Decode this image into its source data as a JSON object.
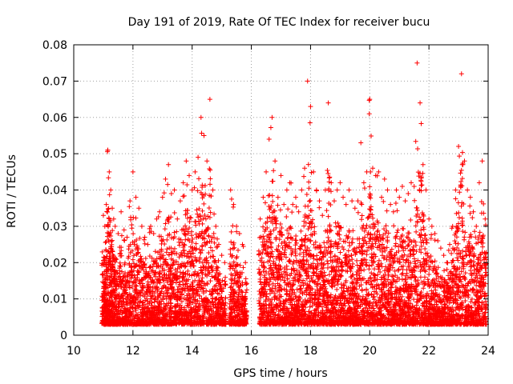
{
  "chart_data": {
    "type": "scatter",
    "title": "Day 191 of 2019, Rate Of TEC Index for receiver bucu",
    "xlabel": "GPS time / hours",
    "ylabel": "ROTI / TECUs",
    "xlim": [
      10,
      24
    ],
    "ylim": [
      0,
      0.08
    ],
    "xticks": [
      "10",
      "12",
      "14",
      "16",
      "18",
      "20",
      "22",
      "24"
    ],
    "yticks": [
      "0",
      "0.01",
      "0.02",
      "0.03",
      "0.04",
      "0.05",
      "0.06",
      "0.07",
      "0.08"
    ],
    "grid": true,
    "marker": "+",
    "color": "#ff0000",
    "series": [
      {
        "x": [
          11.0,
          11.05,
          11.1,
          11.15,
          11.2,
          11.25,
          11.3,
          11.35,
          11.4,
          11.5,
          11.6,
          11.7,
          11.8,
          11.9,
          12.0,
          12.1,
          12.2,
          12.3,
          12.4,
          12.5,
          12.6,
          12.7,
          12.8,
          12.9,
          13.0,
          13.1,
          13.2,
          13.3,
          13.4,
          13.5,
          13.6,
          13.7,
          13.8,
          13.9,
          14.0,
          14.1,
          14.2,
          14.3,
          14.4,
          14.5,
          14.6,
          14.7,
          14.8,
          14.9,
          15.0,
          15.1,
          15.3,
          15.4,
          15.5,
          15.6,
          15.7,
          15.8,
          16.3,
          16.4,
          16.5,
          16.6,
          16.7,
          16.8,
          16.9,
          17.0,
          17.1,
          17.2,
          17.3,
          17.4,
          17.5,
          17.6,
          17.7,
          17.8,
          17.9,
          18.0,
          18.1,
          18.2,
          18.3,
          18.4,
          18.5,
          18.6,
          18.7,
          18.8,
          18.9,
          19.0,
          19.1,
          19.2,
          19.3,
          19.4,
          19.5,
          19.6,
          19.7,
          19.8,
          19.9,
          20.0,
          20.1,
          20.2,
          20.3,
          20.4,
          20.5,
          20.6,
          20.7,
          20.8,
          20.9,
          21.0,
          21.1,
          21.2,
          21.3,
          21.4,
          21.5,
          21.6,
          21.7,
          21.8,
          21.9,
          22.0,
          22.1,
          22.2,
          22.3,
          22.4,
          22.5,
          22.6,
          22.7,
          22.8,
          22.9,
          23.0,
          23.1,
          23.2,
          23.3,
          23.4,
          23.5,
          23.6,
          23.7,
          23.8,
          23.9
        ],
        "y_max": [
          0.033,
          0.03,
          0.036,
          0.051,
          0.045,
          0.04,
          0.035,
          0.032,
          0.03,
          0.028,
          0.034,
          0.029,
          0.027,
          0.037,
          0.045,
          0.038,
          0.035,
          0.03,
          0.027,
          0.025,
          0.03,
          0.028,
          0.032,
          0.034,
          0.038,
          0.043,
          0.047,
          0.039,
          0.04,
          0.032,
          0.037,
          0.042,
          0.048,
          0.044,
          0.04,
          0.045,
          0.049,
          0.06,
          0.055,
          0.048,
          0.065,
          0.04,
          0.03,
          0.025,
          0.022,
          0.02,
          0.04,
          0.036,
          0.03,
          0.028,
          0.025,
          0.02,
          0.032,
          0.038,
          0.045,
          0.054,
          0.06,
          0.048,
          0.038,
          0.044,
          0.036,
          0.04,
          0.042,
          0.036,
          0.038,
          0.034,
          0.04,
          0.046,
          0.07,
          0.063,
          0.045,
          0.04,
          0.037,
          0.033,
          0.04,
          0.064,
          0.042,
          0.037,
          0.04,
          0.042,
          0.038,
          0.036,
          0.04,
          0.037,
          0.035,
          0.037,
          0.053,
          0.042,
          0.045,
          0.065,
          0.046,
          0.044,
          0.045,
          0.038,
          0.043,
          0.04,
          0.036,
          0.034,
          0.04,
          0.038,
          0.041,
          0.037,
          0.039,
          0.042,
          0.041,
          0.075,
          0.064,
          0.047,
          0.04,
          0.032,
          0.03,
          0.028,
          0.026,
          0.024,
          0.022,
          0.02,
          0.025,
          0.03,
          0.04,
          0.052,
          0.072,
          0.048,
          0.04,
          0.038,
          0.034,
          0.03,
          0.042,
          0.048,
          0.032
        ]
      }
    ]
  }
}
